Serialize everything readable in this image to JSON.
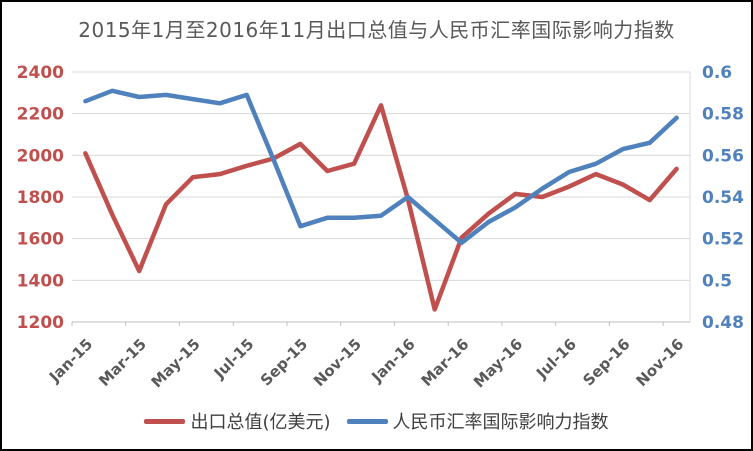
{
  "chart_data": {
    "type": "line",
    "title": "2015年1月至2016年11月出口总值与人民币汇率国际影响力指数",
    "categories": [
      "Jan-15",
      "Feb-15",
      "Mar-15",
      "Apr-15",
      "May-15",
      "Jun-15",
      "Jul-15",
      "Aug-15",
      "Sep-15",
      "Oct-15",
      "Nov-15",
      "Dec-15",
      "Jan-16",
      "Feb-16",
      "Mar-16",
      "Apr-16",
      "May-16",
      "Jun-16",
      "Jul-16",
      "Aug-16",
      "Sep-16",
      "Oct-16",
      "Nov-16"
    ],
    "x_tick_labels": [
      "Jan-15",
      "Mar-15",
      "May-15",
      "Jul-15",
      "Sep-15",
      "Nov-15",
      "Jan-16",
      "Mar-16",
      "May-16",
      "Jul-16",
      "Sep-16",
      "Nov-16"
    ],
    "series": [
      {
        "name": "出口总值(亿美元)",
        "axis": "left",
        "color": "#C0504D",
        "values": [
          2010,
          1715,
          1445,
          1765,
          1895,
          1910,
          1950,
          1985,
          2055,
          1925,
          1960,
          2240,
          1790,
          1260,
          1605,
          1720,
          1815,
          1800,
          1850,
          1910,
          1860,
          1785,
          1935
        ]
      },
      {
        "name": "人民币汇率国际影响力指数",
        "axis": "right",
        "color": "#4F81BD",
        "values": [
          0.586,
          0.591,
          0.588,
          0.589,
          0.587,
          0.585,
          0.589,
          0.558,
          0.526,
          0.53,
          0.53,
          0.531,
          0.54,
          0.529,
          0.518,
          0.528,
          0.535,
          0.544,
          0.552,
          0.556,
          0.563,
          0.566,
          0.578
        ]
      }
    ],
    "left_axis": {
      "min": 1200,
      "max": 2400,
      "step": 200,
      "ticks": [
        2400,
        2200,
        2000,
        1800,
        1600,
        1400,
        1200
      ],
      "label_color": "#C0504D"
    },
    "right_axis": {
      "min": 0.48,
      "max": 0.6,
      "step": 0.02,
      "ticks": [
        "0.6",
        "0.58",
        "0.56",
        "0.54",
        "0.52",
        "0.5",
        "0.48"
      ],
      "label_color": "#4F81BD"
    },
    "x_label_color": "#595959",
    "grid": true,
    "gridline_color": "#D9D9D9",
    "axis_line_color": "#BFBFBF",
    "legend_position": "bottom"
  }
}
